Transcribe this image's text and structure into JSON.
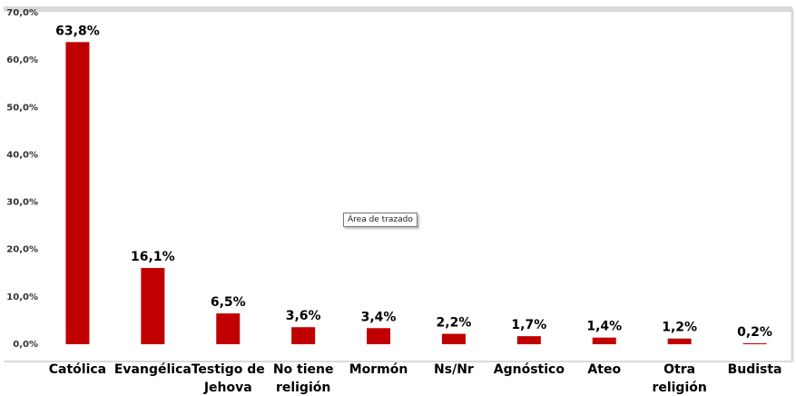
{
  "chart_data": {
    "type": "bar",
    "categories": [
      [
        "Católica"
      ],
      [
        "Evangélica"
      ],
      [
        "Testigo de",
        "Jehova"
      ],
      [
        "No tiene",
        "religión"
      ],
      [
        "Mormón"
      ],
      [
        "Ns/Nr"
      ],
      [
        "Agnóstico"
      ],
      [
        "Ateo"
      ],
      [
        "Otra",
        "religión"
      ],
      [
        "Budista"
      ]
    ],
    "values": [
      63.8,
      16.1,
      6.5,
      3.6,
      3.4,
      2.2,
      1.7,
      1.4,
      1.2,
      0.2
    ],
    "value_labels": [
      "63,8%",
      "16,1%",
      "6,5%",
      "3,6%",
      "3,4%",
      "2,2%",
      "1,7%",
      "1,4%",
      "1,2%",
      "0,2%"
    ],
    "y_ticks": [
      0,
      10,
      20,
      30,
      40,
      50,
      60,
      70
    ],
    "y_tick_labels": [
      "0,0%",
      "10,0%",
      "20,0%",
      "30,0%",
      "40,0%",
      "50,0%",
      "60,0%",
      "70,0%"
    ],
    "ylim": [
      0,
      70
    ],
    "grid": false,
    "title": "",
    "xlabel": "",
    "ylabel": ""
  },
  "colors": {
    "bar": "#c00000",
    "plot_border": "#d9d9d9",
    "plot_background": "#ffffff"
  },
  "tooltip": {
    "text": "Área de trazado"
  }
}
